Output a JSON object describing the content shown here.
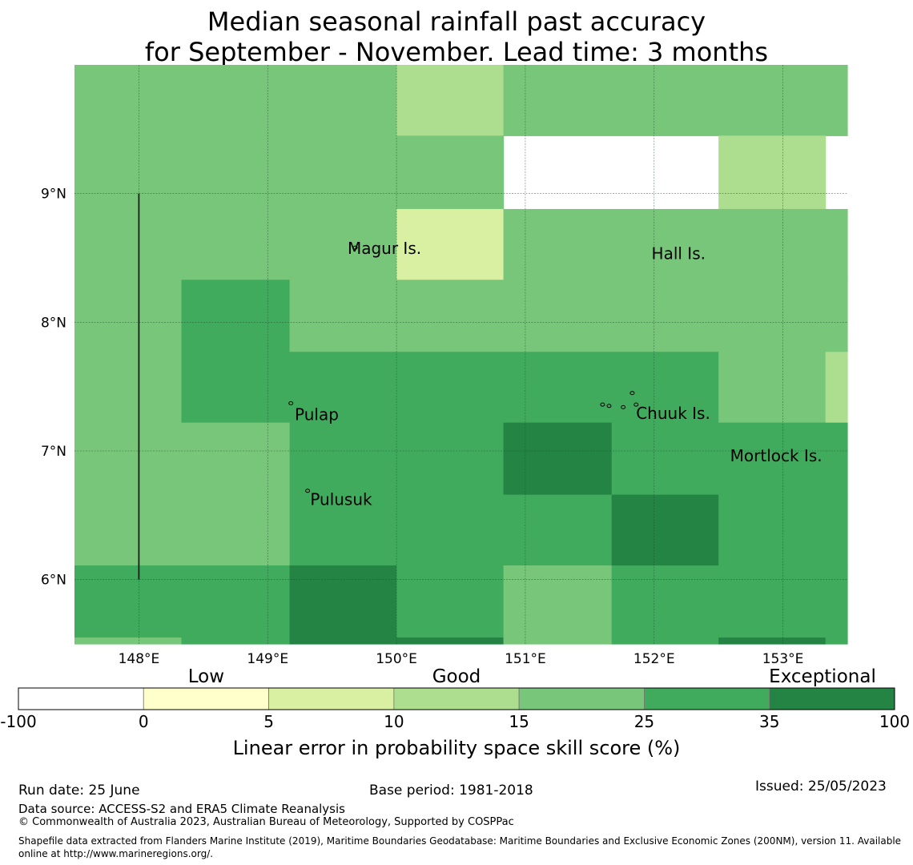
{
  "title": {
    "line1": "Median seasonal rainfall past accuracy",
    "line2": "for September - November. Lead time: 3 months"
  },
  "chart_data": {
    "type": "heatmap",
    "x_ticks": [
      "148°E",
      "149°E",
      "150°E",
      "151°E",
      "152°E",
      "153°E"
    ],
    "y_ticks": [
      "9°N",
      "8°N",
      "7°N",
      "6°N"
    ],
    "x_tick_values": [
      148,
      149,
      150,
      151,
      152,
      153
    ],
    "y_tick_values": [
      9,
      8,
      7,
      6
    ],
    "xlim": [
      147.5,
      153.5
    ],
    "ylim": [
      5.5,
      10
    ],
    "grid": true,
    "legend_position": "bottom",
    "colorbar": {
      "boundaries": [
        "-100",
        "0",
        "5",
        "10",
        "15",
        "25",
        "35",
        "100"
      ],
      "colors": [
        "#ffffff",
        "#ffffcc",
        "#d9f0a3",
        "#addd8e",
        "#78c679",
        "#41ab5d",
        "#238443"
      ],
      "category_labels": [
        "Low",
        "Good",
        "Exceptional"
      ],
      "xlabel": "Linear error in probability space skill score (%)"
    },
    "cells": [
      {
        "x0": 147.5,
        "x1": 150.0,
        "y0": 9.4,
        "y1": 10.0,
        "cat": 4
      },
      {
        "x0": 150.0,
        "x1": 150.83,
        "y0": 9.45,
        "y1": 10.0,
        "cat": 3
      },
      {
        "x0": 150.83,
        "x1": 153.5,
        "y0": 9.45,
        "y1": 10.0,
        "cat": 4
      },
      {
        "x0": 150.0,
        "x1": 150.83,
        "y0": 8.88,
        "y1": 9.45,
        "cat": 4
      },
      {
        "x0": 152.5,
        "x1": 153.33,
        "y0": 8.88,
        "y1": 9.45,
        "cat": 3
      },
      {
        "x0": 147.5,
        "x1": 150.0,
        "y0": 8.33,
        "y1": 9.4,
        "cat": 4
      },
      {
        "x0": 150.0,
        "x1": 150.83,
        "y0": 8.33,
        "y1": 8.88,
        "cat": 2
      },
      {
        "x0": 150.83,
        "x1": 153.5,
        "y0": 8.33,
        "y1": 8.88,
        "cat": 4
      },
      {
        "x0": 147.5,
        "x1": 148.33,
        "y0": 6.11,
        "y1": 8.33,
        "cat": 4
      },
      {
        "x0": 148.33,
        "x1": 149.17,
        "y0": 7.22,
        "y1": 8.33,
        "cat": 5
      },
      {
        "x0": 149.17,
        "x1": 153.5,
        "y0": 7.77,
        "y1": 8.33,
        "cat": 4
      },
      {
        "x0": 149.17,
        "x1": 152.5,
        "y0": 7.22,
        "y1": 7.77,
        "cat": 5
      },
      {
        "x0": 152.5,
        "x1": 153.33,
        "y0": 7.22,
        "y1": 7.77,
        "cat": 4
      },
      {
        "x0": 153.33,
        "x1": 153.5,
        "y0": 7.22,
        "y1": 7.77,
        "cat": 3
      },
      {
        "x0": 148.33,
        "x1": 149.17,
        "y0": 6.11,
        "y1": 7.22,
        "cat": 4
      },
      {
        "x0": 149.17,
        "x1": 150.83,
        "y0": 6.11,
        "y1": 7.22,
        "cat": 5
      },
      {
        "x0": 150.83,
        "x1": 151.67,
        "y0": 6.66,
        "y1": 7.22,
        "cat": 6
      },
      {
        "x0": 151.67,
        "x1": 153.5,
        "y0": 6.66,
        "y1": 7.22,
        "cat": 5
      },
      {
        "x0": 150.83,
        "x1": 151.67,
        "y0": 6.11,
        "y1": 6.66,
        "cat": 5
      },
      {
        "x0": 151.67,
        "x1": 152.5,
        "y0": 6.11,
        "y1": 6.66,
        "cat": 6
      },
      {
        "x0": 152.5,
        "x1": 153.5,
        "y0": 6.11,
        "y1": 6.66,
        "cat": 5
      },
      {
        "x0": 147.5,
        "x1": 149.17,
        "y0": 5.55,
        "y1": 6.11,
        "cat": 5
      },
      {
        "x0": 147.5,
        "x1": 148.33,
        "y0": 5.5,
        "y1": 5.55,
        "cat": 4
      },
      {
        "x0": 148.33,
        "x1": 149.17,
        "y0": 5.5,
        "y1": 5.55,
        "cat": 5
      },
      {
        "x0": 149.17,
        "x1": 150.0,
        "y0": 5.5,
        "y1": 6.11,
        "cat": 6
      },
      {
        "x0": 150.0,
        "x1": 150.83,
        "y0": 5.55,
        "y1": 6.11,
        "cat": 5
      },
      {
        "x0": 150.0,
        "x1": 150.83,
        "y0": 5.5,
        "y1": 5.55,
        "cat": 6
      },
      {
        "x0": 150.83,
        "x1": 151.67,
        "y0": 5.5,
        "y1": 6.11,
        "cat": 4
      },
      {
        "x0": 151.67,
        "x1": 152.5,
        "y0": 5.5,
        "y1": 6.11,
        "cat": 5
      },
      {
        "x0": 152.5,
        "x1": 153.33,
        "y0": 5.55,
        "y1": 6.11,
        "cat": 5
      },
      {
        "x0": 152.5,
        "x1": 153.33,
        "y0": 5.5,
        "y1": 5.55,
        "cat": 6
      },
      {
        "x0": 153.33,
        "x1": 153.5,
        "y0": 5.5,
        "y1": 6.11,
        "cat": 5
      }
    ],
    "places": [
      {
        "name": "Magur Is.",
        "lon": 149.62,
        "lat": 8.53
      },
      {
        "name": "Hall Is.",
        "lon": 151.98,
        "lat": 8.49
      },
      {
        "name": "Pulap",
        "lon": 149.21,
        "lat": 7.24
      },
      {
        "name": "Chuuk Is.",
        "lon": 151.86,
        "lat": 7.25
      },
      {
        "name": "Mortlock Is.",
        "lon": 152.59,
        "lat": 6.92
      },
      {
        "name": "Pulusuk",
        "lon": 149.33,
        "lat": 6.58
      }
    ],
    "islands": [
      {
        "lon": 149.68,
        "lat": 8.58
      },
      {
        "lon": 149.18,
        "lat": 7.37
      },
      {
        "lon": 151.83,
        "lat": 7.45
      },
      {
        "lon": 151.65,
        "lat": 7.35
      },
      {
        "lon": 151.76,
        "lat": 7.34
      },
      {
        "lon": 151.86,
        "lat": 7.36
      },
      {
        "lon": 151.6,
        "lat": 7.36
      },
      {
        "lon": 149.31,
        "lat": 6.69
      }
    ],
    "vertical_line": {
      "lon": 148.0,
      "lat_from": 6.0,
      "lat_to": 9.0
    }
  },
  "footer": {
    "run_date": "Run date: 25 June",
    "base_period": "Base period: 1981-2018",
    "issued": "Issued: 25/05/2023",
    "data_source": "Data source: ACCESS-S2 and ERA5 Climate Reanalysis",
    "copyright": "© Commonwealth of Australia 2023, Australian Bureau of Meteorology, Supported by COSPPac",
    "shapefile": "Shapefile data extracted from Flanders Marine Institute (2019), Maritime Boundaries Geodatabase: Maritime Boundaries and Exclusive Economic Zones (200NM), version 11. Available online at http://www.marineregions.org/."
  }
}
